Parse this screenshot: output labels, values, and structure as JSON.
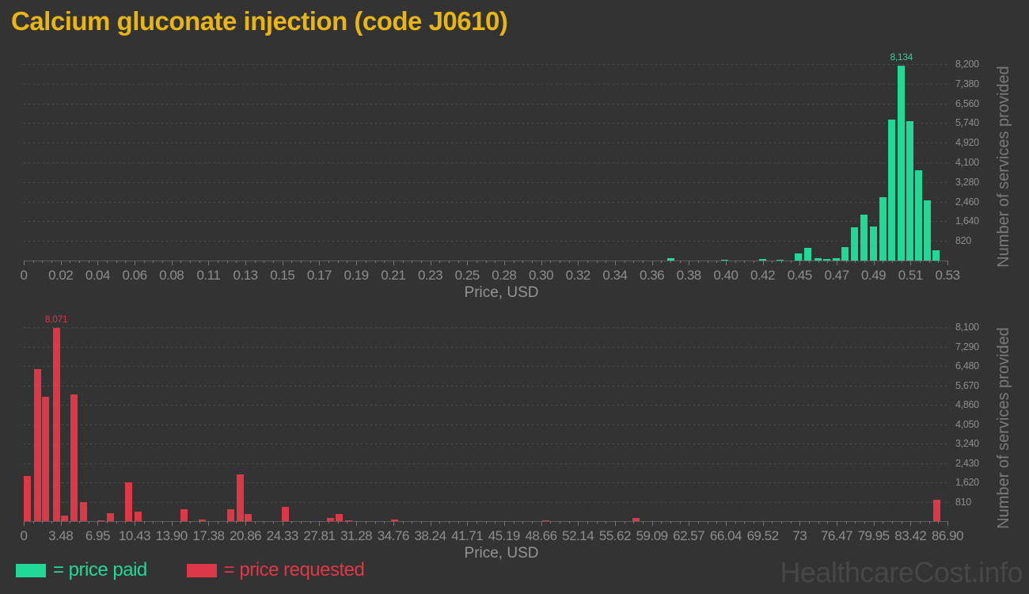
{
  "title": "Calcium gluconate injection (code J0610)",
  "watermark": "HealthcareCost.info",
  "colors": {
    "background": "#333333",
    "price_paid": "#21d996",
    "price_requested": "#dc3847",
    "title": "#e9b512"
  },
  "legend": [
    {
      "label": "= price paid",
      "color": "#21d996"
    },
    {
      "label": "= price requested",
      "color": "#dc3847"
    }
  ],
  "chart_data": [
    {
      "type": "bar",
      "name": "price paid",
      "color": "#21d996",
      "xlabel": "Price, USD",
      "ylabel": "Number of services provided",
      "xlim": [
        0,
        0.53
      ],
      "ylim": [
        0,
        8200
      ],
      "grid": "horizontal-dashed",
      "legend_position": "bottom-left",
      "peak_label": "8,134",
      "x_tick_labels": [
        "0",
        "0.02",
        "0.04",
        "0.06",
        "0.08",
        "0.11",
        "0.13",
        "0.15",
        "0.17",
        "0.19",
        "0.21",
        "0.23",
        "0.25",
        "0.28",
        "0.30",
        "0.32",
        "0.34",
        "0.36",
        "0.38",
        "0.40",
        "0.42",
        "0.45",
        "0.47",
        "0.49",
        "0.51",
        "0.53"
      ],
      "y_tick_labels": [
        "820",
        "1,640",
        "2,460",
        "3,280",
        "4,100",
        "4,920",
        "5,740",
        "6,560",
        "7,380",
        "8,200"
      ],
      "points": [
        {
          "x": 0.369,
          "y": 90
        },
        {
          "x": 0.4,
          "y": 45
        },
        {
          "x": 0.422,
          "y": 60
        },
        {
          "x": 0.432,
          "y": 30
        },
        {
          "x": 0.4425,
          "y": 300
        },
        {
          "x": 0.448,
          "y": 520
        },
        {
          "x": 0.4535,
          "y": 105
        },
        {
          "x": 0.4585,
          "y": 65
        },
        {
          "x": 0.464,
          "y": 85
        },
        {
          "x": 0.469,
          "y": 580
        },
        {
          "x": 0.4745,
          "y": 1380
        },
        {
          "x": 0.48,
          "y": 1930
        },
        {
          "x": 0.4855,
          "y": 1410
        },
        {
          "x": 0.491,
          "y": 2650
        },
        {
          "x": 0.496,
          "y": 5900
        },
        {
          "x": 0.5015,
          "y": 8134
        },
        {
          "x": 0.5065,
          "y": 5830
        },
        {
          "x": 0.5115,
          "y": 3760
        },
        {
          "x": 0.5165,
          "y": 2520
        },
        {
          "x": 0.5215,
          "y": 420
        }
      ]
    },
    {
      "type": "bar",
      "name": "price requested",
      "color": "#dc3847",
      "xlabel": "Price, USD",
      "ylabel": "Number of services provided",
      "xlim": [
        0,
        86.9
      ],
      "ylim": [
        0,
        8100
      ],
      "grid": "horizontal-dashed",
      "legend_position": "bottom-left",
      "peak_label": "8,071",
      "x_tick_labels": [
        "0",
        "3.48",
        "6.95",
        "10.43",
        "13.90",
        "17.38",
        "20.86",
        "24.33",
        "27.81",
        "31.28",
        "34.76",
        "38.24",
        "41.71",
        "45.19",
        "48.66",
        "52.14",
        "55.62",
        "59.09",
        "62.57",
        "66.04",
        "69.52",
        "73",
        "76.47",
        "79.95",
        "83.42",
        "86.90"
      ],
      "y_tick_labels": [
        "810",
        "1,620",
        "2,430",
        "3,240",
        "4,050",
        "4,860",
        "5,670",
        "6,480",
        "7,290",
        "8,100"
      ],
      "points": [
        {
          "x": 0.0,
          "y": 1890
        },
        {
          "x": 0.95,
          "y": 6350
        },
        {
          "x": 1.74,
          "y": 5190
        },
        {
          "x": 2.73,
          "y": 8071
        },
        {
          "x": 3.52,
          "y": 240
        },
        {
          "x": 4.42,
          "y": 5300
        },
        {
          "x": 5.26,
          "y": 790
        },
        {
          "x": 6.95,
          "y": 45
        },
        {
          "x": 7.82,
          "y": 340
        },
        {
          "x": 9.55,
          "y": 1610
        },
        {
          "x": 10.42,
          "y": 395
        },
        {
          "x": 14.77,
          "y": 505
        },
        {
          "x": 16.43,
          "y": 70
        },
        {
          "x": 19.11,
          "y": 485
        },
        {
          "x": 20.01,
          "y": 1950
        },
        {
          "x": 20.78,
          "y": 285
        },
        {
          "x": 24.27,
          "y": 595
        },
        {
          "x": 28.54,
          "y": 120
        },
        {
          "x": 29.36,
          "y": 285
        },
        {
          "x": 30.23,
          "y": 30
        },
        {
          "x": 34.57,
          "y": 70
        },
        {
          "x": 48.77,
          "y": 30
        },
        {
          "x": 57.28,
          "y": 120
        },
        {
          "x": 85.56,
          "y": 880
        }
      ]
    }
  ]
}
